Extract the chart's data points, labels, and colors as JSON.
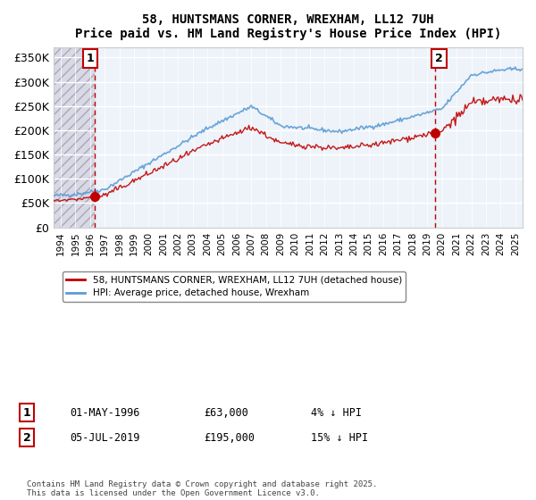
{
  "title": "58, HUNTSMANS CORNER, WREXHAM, LL12 7UH",
  "subtitle": "Price paid vs. HM Land Registry's House Price Index (HPI)",
  "ylabel_ticks": [
    0,
    50000,
    100000,
    150000,
    200000,
    250000,
    300000,
    350000
  ],
  "ylabel_labels": [
    "£0",
    "£50K",
    "£100K",
    "£150K",
    "£200K",
    "£250K",
    "£300K",
    "£350K"
  ],
  "xmin": 1993.5,
  "xmax": 2025.5,
  "ymin": 0,
  "ymax": 370000,
  "sale1_date": 1996.33,
  "sale1_price": 63000,
  "sale1_label": "1",
  "sale2_date": 2019.5,
  "sale2_price": 195000,
  "sale2_label": "2",
  "hpi_color": "#5b9bd5",
  "price_color": "#c00000",
  "legend_line1": "58, HUNTSMANS CORNER, WREXHAM, LL12 7UH (detached house)",
  "legend_line2": "HPI: Average price, detached house, Wrexham",
  "annotation1": "01-MAY-1996          £63,000          4% ↓ HPI",
  "annotation2": "05-JUL-2019          £195,000          15% ↓ HPI",
  "footnote": "Contains HM Land Registry data © Crown copyright and database right 2025.\nThis data is licensed under the Open Government Licence v3.0.",
  "background_hatch": "#e8e8f0",
  "background_main": "#dce8f5"
}
